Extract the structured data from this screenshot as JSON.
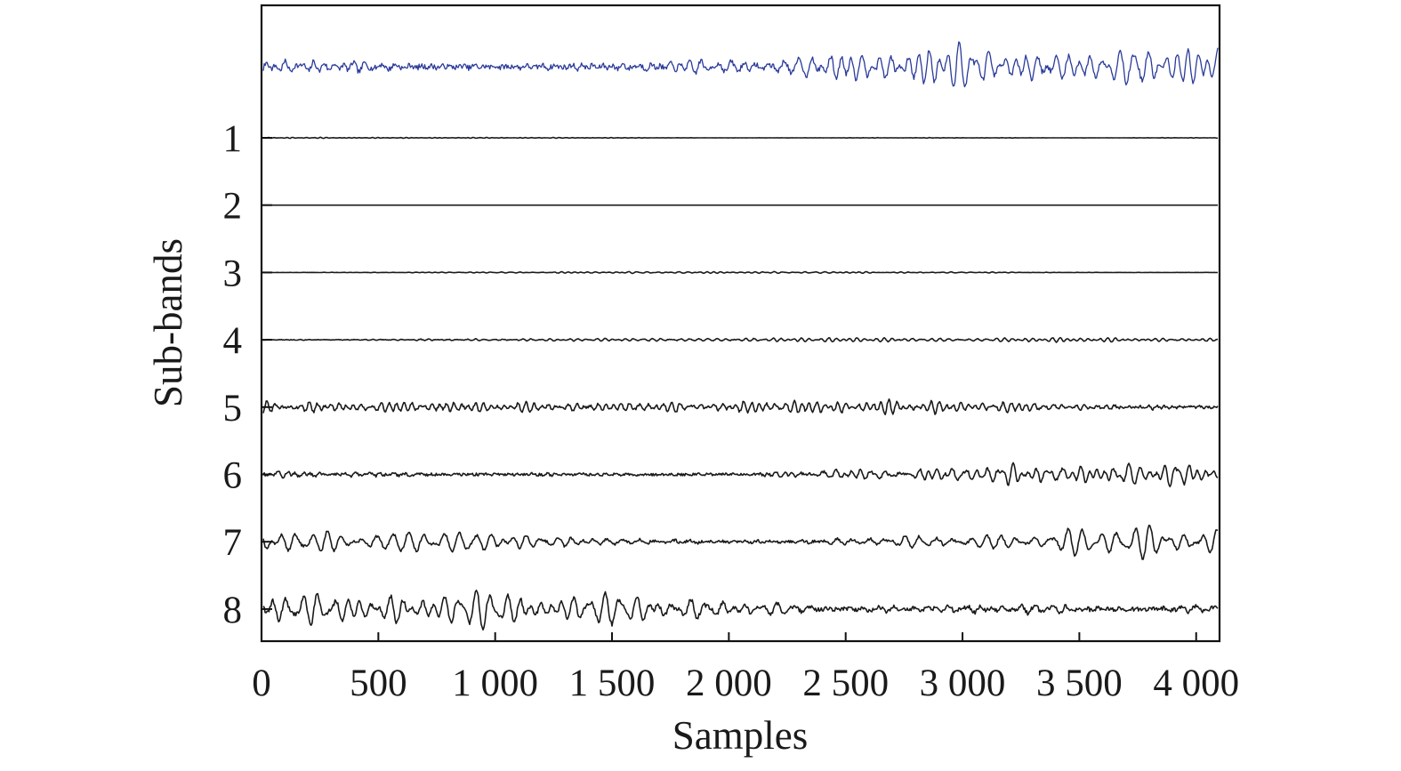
{
  "chart_data": {
    "type": "line",
    "title": "",
    "xlabel": "Samples",
    "ylabel": "Sub-bands",
    "xlim": [
      0,
      4100
    ],
    "xticks": [
      {
        "value": 0,
        "label": "0"
      },
      {
        "value": 500,
        "label": "500"
      },
      {
        "value": 1000,
        "label": "1 000"
      },
      {
        "value": 1500,
        "label": "1 500"
      },
      {
        "value": 2000,
        "label": "2 000"
      },
      {
        "value": 2500,
        "label": "2 500"
      },
      {
        "value": 3000,
        "label": "3 000"
      },
      {
        "value": 3500,
        "label": "3 500"
      },
      {
        "value": 4000,
        "label": "4 000"
      }
    ],
    "original_signal": {
      "color": "#2a3b9a",
      "relative_amplitude": 1.0
    },
    "series": [
      {
        "label": "1",
        "relative_amplitude": 0.02
      },
      {
        "label": "2",
        "relative_amplitude": 0.0
      },
      {
        "label": "3",
        "relative_amplitude": 0.03
      },
      {
        "label": "4",
        "relative_amplitude": 0.08
      },
      {
        "label": "5",
        "relative_amplitude": 0.25
      },
      {
        "label": "6",
        "relative_amplitude": 0.38
      },
      {
        "label": "7",
        "relative_amplitude": 0.55
      },
      {
        "label": "8",
        "relative_amplitude": 0.65
      }
    ],
    "subband_color": "#1a1a1a",
    "grid": false,
    "legend": "none"
  }
}
